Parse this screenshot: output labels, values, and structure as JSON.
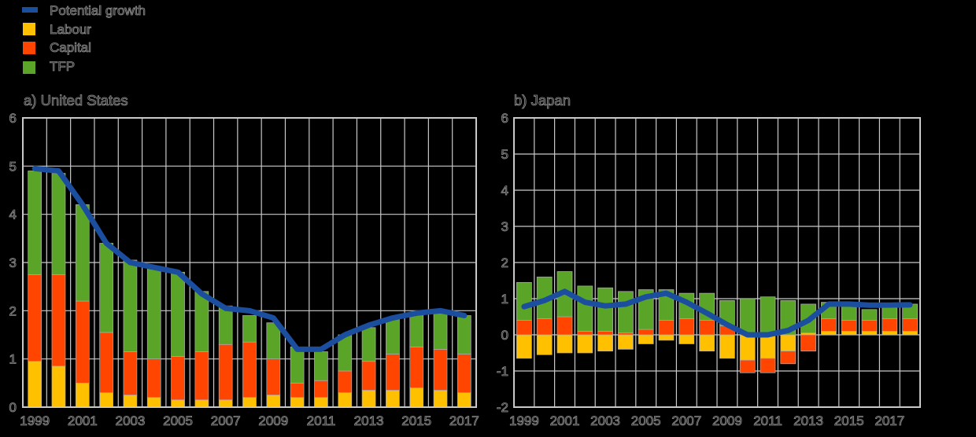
{
  "page": {
    "background": "#000000",
    "grid_color": "#c9c9c9",
    "text_outline_color": "#8c8c8c"
  },
  "legend": {
    "items": [
      {
        "label": "Potential growth",
        "color": "#1c4ea0",
        "swatch": "line"
      },
      {
        "label": "Labour",
        "color": "#ffc000",
        "swatch": "box"
      },
      {
        "label": "Capital",
        "color": "#ff4500",
        "swatch": "box"
      },
      {
        "label": "TFP",
        "color": "#5aa428",
        "swatch": "box"
      }
    ]
  },
  "chart_data": [
    {
      "type": "stacked-bar+line",
      "title": "a) United States",
      "ylim": [
        0,
        6
      ],
      "yticks": [
        0,
        1,
        2,
        3,
        4,
        5,
        6
      ],
      "grid": true,
      "years": [
        1999,
        2000,
        2001,
        2002,
        2003,
        2004,
        2005,
        2006,
        2007,
        2008,
        2009,
        2010,
        2011,
        2012,
        2013,
        2014,
        2015,
        2016,
        2017
      ],
      "x_tick_labels": [
        "1999",
        "2001",
        "2003",
        "2005",
        "2007",
        "2009",
        "2011",
        "2013",
        "2015",
        "2017"
      ],
      "series": [
        {
          "name": "Labour",
          "color": "#ffc000",
          "values": [
            0.95,
            0.85,
            0.5,
            0.3,
            0.25,
            0.2,
            0.15,
            0.15,
            0.15,
            0.2,
            0.25,
            0.2,
            0.2,
            0.3,
            0.35,
            0.35,
            0.4,
            0.35,
            0.3
          ]
        },
        {
          "name": "Capital",
          "color": "#ff4500",
          "values": [
            1.8,
            1.9,
            1.7,
            1.25,
            0.9,
            0.8,
            0.9,
            1.0,
            1.15,
            1.15,
            0.75,
            0.3,
            0.35,
            0.45,
            0.6,
            0.75,
            0.85,
            0.85,
            0.8
          ]
        },
        {
          "name": "TFP",
          "color": "#5aa428",
          "values": [
            2.15,
            2.1,
            2.0,
            1.85,
            1.9,
            1.9,
            1.75,
            1.25,
            0.8,
            0.55,
            0.75,
            0.75,
            0.6,
            0.75,
            0.7,
            0.75,
            0.7,
            0.8,
            0.8
          ]
        }
      ],
      "line": {
        "name": "Potential growth",
        "color": "#1c4ea0",
        "values": [
          4.95,
          4.9,
          4.2,
          3.4,
          3.0,
          2.9,
          2.8,
          2.35,
          2.05,
          2.0,
          1.85,
          1.2,
          1.2,
          1.5,
          1.7,
          1.85,
          1.95,
          2.0,
          1.9
        ]
      }
    },
    {
      "type": "stacked-bar+line",
      "title": "b) Japan",
      "ylim": [
        -2,
        6
      ],
      "yticks": [
        -2,
        -1,
        0,
        1,
        2,
        3,
        4,
        5,
        6
      ],
      "grid": true,
      "years": [
        1999,
        2000,
        2001,
        2002,
        2003,
        2004,
        2005,
        2006,
        2007,
        2008,
        2009,
        2010,
        2011,
        2012,
        2013,
        2014,
        2015,
        2016,
        2017,
        2018
      ],
      "x_tick_labels": [
        "1999",
        "2001",
        "2003",
        "2005",
        "2007",
        "2009",
        "2011",
        "2013",
        "2015",
        "2017"
      ],
      "series": [
        {
          "name": "Labour",
          "color": "#ffc000",
          "values": [
            -0.65,
            -0.55,
            -0.5,
            -0.5,
            -0.45,
            -0.4,
            -0.25,
            -0.15,
            -0.25,
            -0.45,
            -0.65,
            -0.7,
            -0.65,
            -0.45,
            0.05,
            0.1,
            0.1,
            0.1,
            0.1,
            0.1
          ]
        },
        {
          "name": "Capital",
          "color": "#ff4500",
          "values": [
            0.4,
            0.45,
            0.5,
            0.1,
            0.1,
            0.05,
            0.15,
            0.4,
            0.45,
            0.4,
            0.25,
            -0.35,
            -0.4,
            -0.35,
            -0.45,
            0.35,
            0.3,
            0.3,
            0.35,
            0.35
          ]
        },
        {
          "name": "TFP",
          "color": "#5aa428",
          "values": [
            1.05,
            1.15,
            1.25,
            1.25,
            1.2,
            1.15,
            1.1,
            0.85,
            0.7,
            0.75,
            0.7,
            1.0,
            1.05,
            0.95,
            0.8,
            0.45,
            0.4,
            0.3,
            0.3,
            0.4
          ]
        }
      ],
      "line": {
        "name": "Potential growth",
        "color": "#1c4ea0",
        "values": [
          0.78,
          0.95,
          1.2,
          0.9,
          0.8,
          0.85,
          1.05,
          1.15,
          0.9,
          0.6,
          0.28,
          0.0,
          0.0,
          0.12,
          0.4,
          0.85,
          0.85,
          0.82,
          0.82,
          0.83
        ]
      }
    }
  ]
}
